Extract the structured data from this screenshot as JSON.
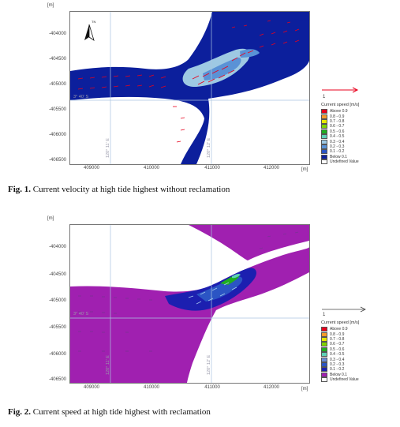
{
  "figures": [
    {
      "unit_y": "[m]",
      "unit_x": "[m]",
      "yticks": [
        "-404000",
        "-404500",
        "-405000",
        "-405500",
        "-406000",
        "-406500"
      ],
      "xticks": [
        "409000",
        "410000",
        "411000",
        "412000"
      ],
      "lat_label": "3° 40' S",
      "lon_label_1": "120° 11' E",
      "lon_label_2": "120° 12' E",
      "north_label": "TN",
      "caption_prefix": "Fig. 1.",
      "caption_text": " Current velocity at high tide highest without reclamation",
      "scale_value": "1",
      "legend_title": "Current speed [m/s]",
      "legend_items": [
        {
          "label": "Above 0.9",
          "color": "#e8001c"
        },
        {
          "label": "0.8 - 0.9",
          "color": "#f59a2a"
        },
        {
          "label": "0.7 - 0.8",
          "color": "#e8e800"
        },
        {
          "label": "0.6 - 0.7",
          "color": "#7fd400"
        },
        {
          "label": "0.5 - 0.6",
          "color": "#1fae1f"
        },
        {
          "label": "0.4 - 0.5",
          "color": "#5fd1b6"
        },
        {
          "label": "0.3 - 0.4",
          "color": "#9ec9e3"
        },
        {
          "label": "0.2 - 0.3",
          "color": "#5a92d6"
        },
        {
          "label": "0.1 - 0.2",
          "color": "#2b55c4"
        },
        {
          "label": "Below 0.1",
          "color": "#0c1f9c"
        },
        {
          "label": "Undefined Value",
          "color": "#ffffff"
        }
      ]
    },
    {
      "unit_y": "[m]",
      "unit_x": "[m]",
      "yticks": [
        "-404000",
        "-404500",
        "-405000",
        "-405500",
        "-406000",
        "-406500"
      ],
      "xticks": [
        "409000",
        "410000",
        "411000",
        "412000"
      ],
      "lat_label": "3° 40' S",
      "lon_label_1": "120° 11' E",
      "lon_label_2": "120° 12' E",
      "north_label": "",
      "caption_prefix": "Fig. 2.",
      "caption_text": " Current speed at high tide highest with reclamation",
      "scale_value": "1",
      "legend_title": "Current speed [m/s]",
      "legend_items": [
        {
          "label": "Above 0.9",
          "color": "#e8001c"
        },
        {
          "label": "0.8 - 0.9",
          "color": "#f59a2a"
        },
        {
          "label": "0.7 - 0.8",
          "color": "#e8e800"
        },
        {
          "label": "0.6 - 0.7",
          "color": "#7fd400"
        },
        {
          "label": "0.5 - 0.6",
          "color": "#1fae1f"
        },
        {
          "label": "0.4 - 0.5",
          "color": "#5fd1b6"
        },
        {
          "label": "0.3 - 0.4",
          "color": "#6a8bd6"
        },
        {
          "label": "0.2 - 0.3",
          "color": "#2b55c4"
        },
        {
          "label": "0.1 - 0.2",
          "color": "#1c1fb0"
        },
        {
          "label": "Below 0.1",
          "color": "#a020b0"
        },
        {
          "label": "Undefined Value",
          "color": "#ffffff"
        }
      ]
    }
  ],
  "colors": {
    "water_fig1": "#0c1f9c",
    "water_fig2": "#a020b0",
    "land": "#ffffff",
    "arrow": "#e8001c",
    "grid": "#aac4e0"
  }
}
